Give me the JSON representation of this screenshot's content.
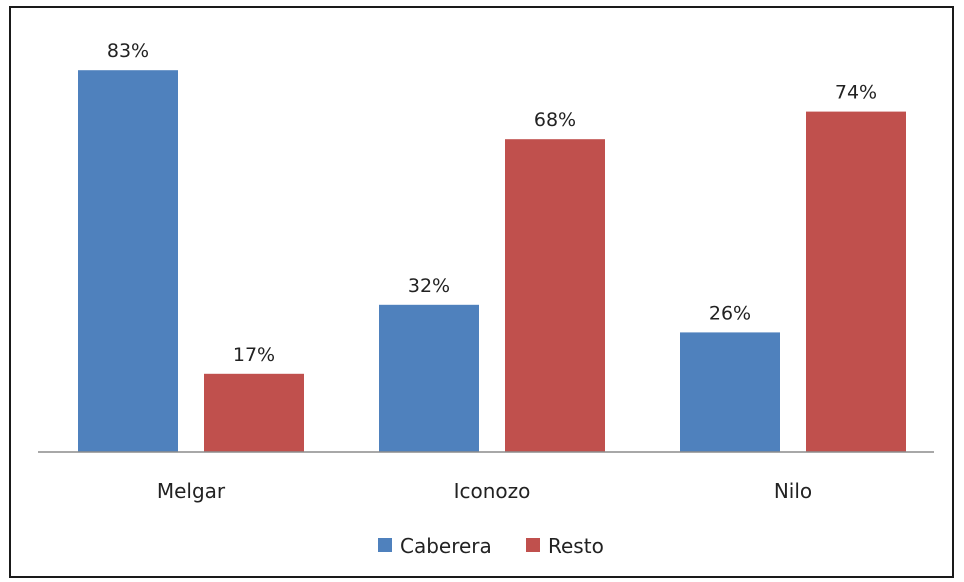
{
  "chart_data": {
    "type": "bar",
    "categories": [
      "Melgar",
      "Iconozo",
      "Nilo"
    ],
    "series": [
      {
        "name": "Caberera",
        "values": [
          83,
          32,
          26
        ],
        "labels": [
          "83%",
          "32%",
          "26%"
        ]
      },
      {
        "name": "Resto",
        "values": [
          17,
          68,
          74
        ],
        "labels": [
          "17%",
          "68%",
          "74%"
        ]
      }
    ],
    "colors": [
      "#4f81bd",
      "#c0504d"
    ],
    "ylim": [
      0,
      100
    ],
    "legend": "bottom",
    "grid": false
  }
}
